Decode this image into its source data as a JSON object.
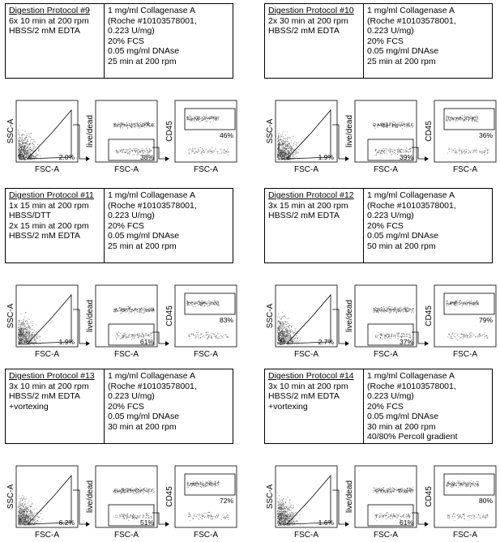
{
  "axis_labels": {
    "ssc": "SSC-A",
    "fsc": "FSC-A",
    "live": "live/dead",
    "cd45": "CD45"
  },
  "protocols": [
    {
      "title": "Digestion Protocol #9",
      "steps": [
        "6x 10 min at 200 rpm",
        "HBSS/2 mM EDTA"
      ],
      "conditions": [
        "1 mg/ml Collagenase A",
        "(Roche #10103578001,",
        "0.223 U/mg)",
        "20% FCS",
        "0.05 mg/ml DNAse",
        "25 min at 200 rpm"
      ],
      "percents": [
        "2.0%",
        "38%",
        "46%"
      ]
    },
    {
      "title": "Digestion Protocol #10",
      "steps": [
        "2x 30 min at 200 rpm",
        "HBSS/2 mM EDTA"
      ],
      "conditions": [
        "1 mg/ml Collagenase A",
        "(Roche #10103578001,",
        "0.223 U/mg)",
        "20% FCS",
        "0.05 mg/ml DNAse",
        "25 min at 200 rpm"
      ],
      "percents": [
        "1.9%",
        "39%",
        "36%"
      ]
    },
    {
      "title": "Digestion Protocol #11",
      "steps": [
        "1x 15 min at 200 rpm",
        "HBSS/DTT",
        "2x 15 min at 200 rpm",
        "HBSS/2 mM EDTA"
      ],
      "conditions": [
        "1 mg/ml Collagenase A",
        "(Roche #10103578001,",
        "0.223 U/mg)",
        "20% FCS",
        "0.05 mg/ml DNAse",
        "25 min at 200 rpm"
      ],
      "percents": [
        "1.9%",
        "61%",
        "83%"
      ]
    },
    {
      "title": "Digestion Protocol #12",
      "steps": [
        "3x 15 min at 200 rpm",
        "HBSS/2 mM EDTA"
      ],
      "conditions": [
        "1 mg/ml Collagenase A",
        "(Roche #10103578001,",
        "0.223 U/mg)",
        "20% FCS",
        "0.05 mg/ml DNAse",
        "50 min at 200 rpm"
      ],
      "percents": [
        "2.7%",
        "37%",
        "79%"
      ]
    },
    {
      "title": "Digestion Protocol #13",
      "steps": [
        "3x 10 min at 200 rpm",
        "HBSS/2 mM EDTA",
        "+vortexing"
      ],
      "conditions": [
        "1 mg/ml Collagenase A",
        "(Roche #10103578001,",
        "0.223 U/mg)",
        "20% FCS",
        "0.05 mg/ml DNAse",
        "30 min at 200 rpm"
      ],
      "percents": [
        "6.2%",
        "51%",
        "72%"
      ]
    },
    {
      "title": "Digestion Protocol #14",
      "steps": [
        "3x 10 min at 200 rpm",
        "HBSS/2 mM EDTA",
        "+vortexing"
      ],
      "conditions": [
        "1 mg/ml Collagenase A",
        "(Roche #10103578001,",
        "0.223 U/mg)",
        "20% FCS",
        "0.05 mg/ml DNAse",
        "30 min at 200 rpm",
        "40/80% Percoll gradient"
      ],
      "percents": [
        "1.6%",
        "61%",
        "80%"
      ]
    }
  ]
}
